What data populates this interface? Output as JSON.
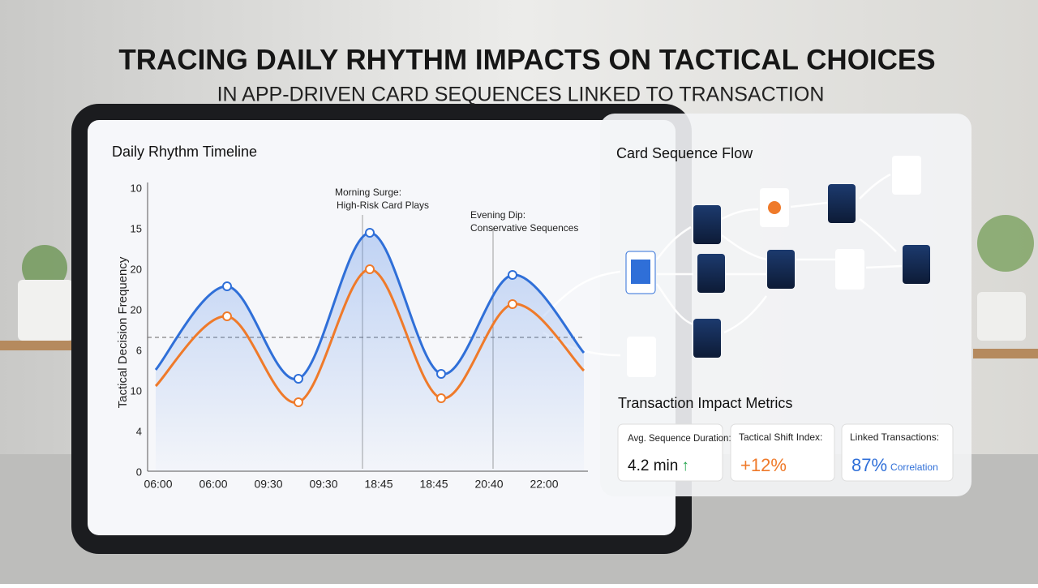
{
  "header": {
    "title": "TRACING DAILY RHYTHM IMPACTS ON TACTICAL CHOICES",
    "subtitle": "IN APP-DRIVEN CARD SEQUENCES LINKED TO TRANSACTION"
  },
  "chart_data": {
    "type": "line",
    "title": "Daily Rhythm Timeline",
    "y_label": "Tactical Decision Frequency",
    "y_axis_labels": [
      "10",
      "15",
      "20",
      "20",
      "6",
      "10",
      "4",
      "0"
    ],
    "x_axis_labels": [
      "06:00",
      "06:00",
      "09:30",
      "09:30",
      "18:45",
      "18:45",
      "20:40",
      "22:00"
    ],
    "categories": [
      null,
      null,
      null,
      null,
      null,
      null,
      null
    ],
    "ylim": [
      0,
      35
    ],
    "reference": 16.5,
    "series": [
      {
        "name": null,
        "color": "#2f6fd8",
        "values": [
          12.5,
          22.8,
          11.4,
          29.4,
          12,
          24.2,
          14.6
        ]
      },
      {
        "name": null,
        "color": "#ef7a2a",
        "values": [
          10.5,
          19.1,
          8.5,
          24.9,
          9,
          20.6,
          12.4
        ]
      }
    ],
    "annotations": [
      {
        "lines": [
          "Morning Surge:",
          "High-Risk Card Plays"
        ]
      },
      {
        "lines": [
          "Evening Dip:",
          "Conservative Sequences"
        ]
      }
    ]
  },
  "flow": {
    "title": "Card Sequence Flow"
  },
  "metrics": {
    "title": "Transaction Impact Metrics",
    "cards": [
      {
        "label": "Avg. Sequence Duration:",
        "value": "4.2 min",
        "extra": "↑"
      },
      {
        "label": "Tactical Shift Index:",
        "value": "+12%"
      },
      {
        "label": "Linked Transactions:",
        "value": "87%",
        "extra": "Correlation"
      }
    ]
  }
}
